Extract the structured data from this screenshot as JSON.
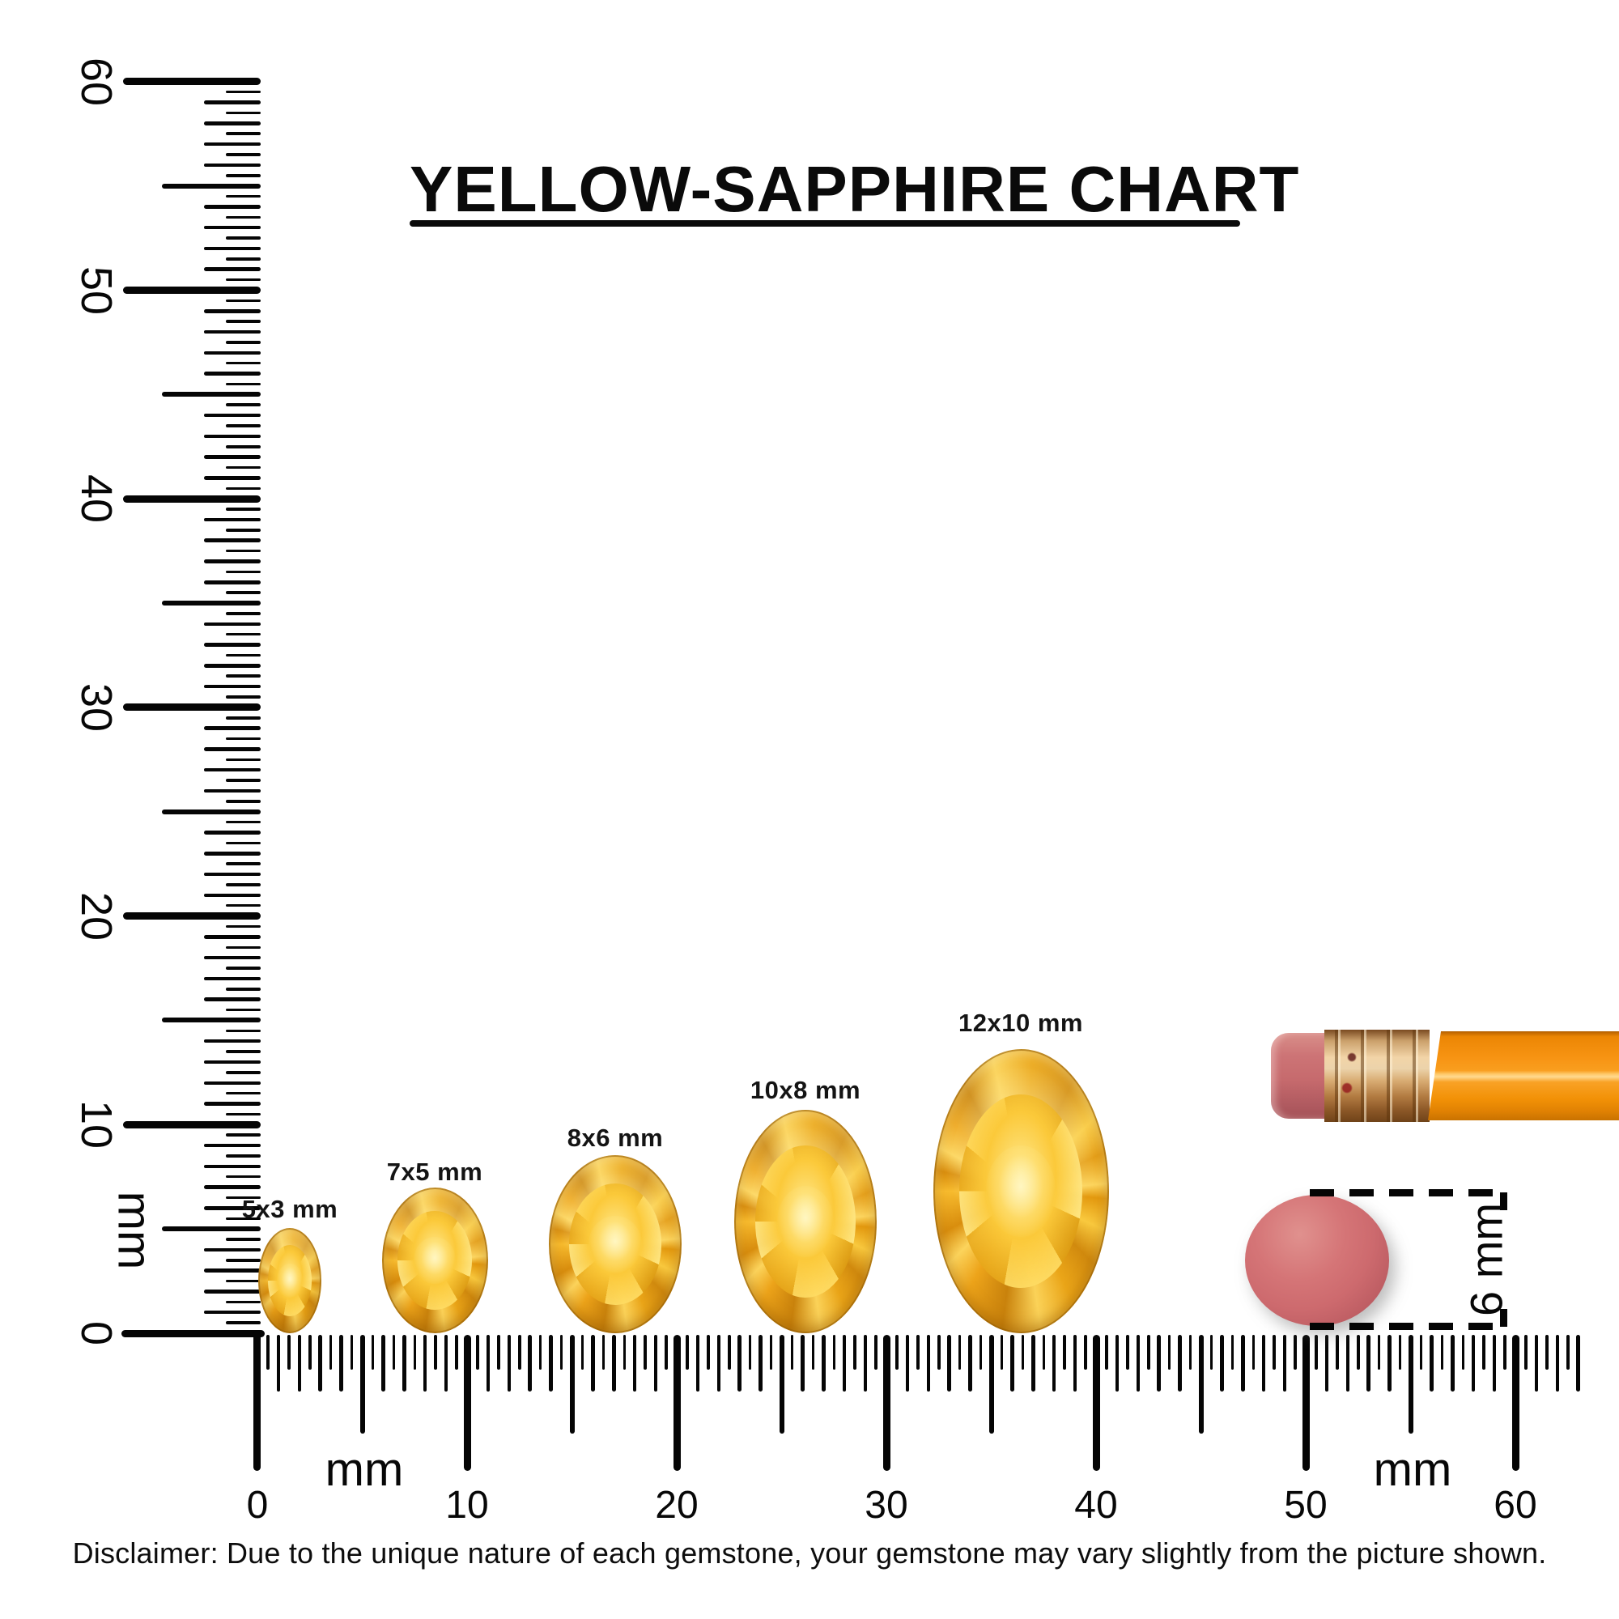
{
  "title": {
    "text": "YELLOW-SAPPHIRE CHART"
  },
  "rulers": {
    "vertical": {
      "unit": "mm",
      "min_mm": 0,
      "max_mm": 60,
      "major_labels": [
        "0",
        "10",
        "20",
        "30",
        "40",
        "50",
        "60"
      ]
    },
    "horizontal": {
      "unit": "mm",
      "min_mm": 0,
      "max_mm": 60,
      "overrun_mm": 3,
      "major_labels": [
        "0",
        "10",
        "20",
        "30",
        "40",
        "50",
        "60"
      ],
      "unit_positions_mm": [
        5,
        55
      ]
    }
  },
  "gems": [
    {
      "label": "5x3 mm",
      "width_mm": 3,
      "height_mm": 5
    },
    {
      "label": "7x5 mm",
      "width_mm": 5,
      "height_mm": 7
    },
    {
      "label": "8x6 mm",
      "width_mm": 6,
      "height_mm": 8
    },
    {
      "label": "10x8 mm",
      "width_mm": 8,
      "height_mm": 10
    },
    {
      "label": "12x10 mm",
      "width_mm": 10,
      "height_mm": 12
    }
  ],
  "eraser_measure": {
    "label": "6 mm"
  },
  "disclaimer": "Disclaimer: Due to the unique nature of each gemstone, your gemstone may vary slightly from the picture shown.",
  "colors": {
    "ink": "#050505",
    "gem_yellow": "#f6a81c",
    "gem_highlight": "#ffe98f",
    "pencil_orange": "#f79413",
    "eraser_pink": "#c66a6d",
    "ferrule_copper": "#d9a36a",
    "eraser_disc_pink": "#cd6a6e"
  }
}
